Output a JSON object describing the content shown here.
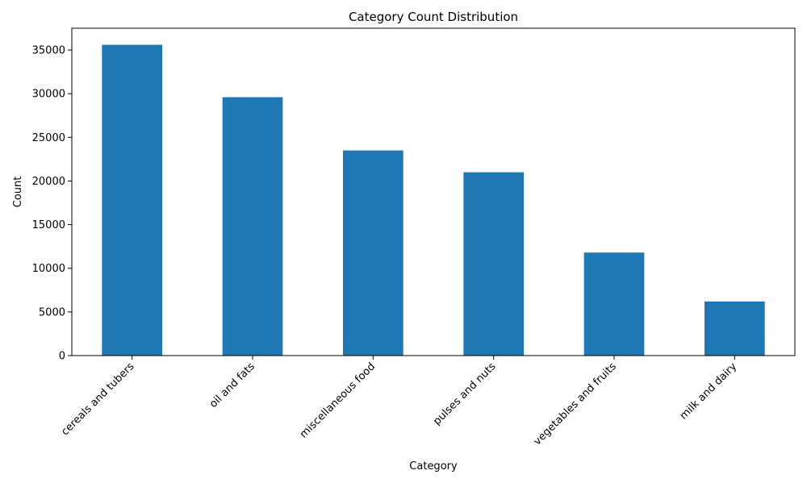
{
  "chart_data": {
    "type": "bar",
    "title": "Category Count Distribution",
    "xlabel": "Category",
    "ylabel": "Count",
    "categories": [
      "cereals and tubers",
      "oil and fats",
      "miscellaneous food",
      "pulses and nuts",
      "vegetables and fruits",
      "milk and dairy"
    ],
    "values": [
      35600,
      29600,
      23500,
      21000,
      11800,
      6200
    ],
    "ylim": [
      0,
      37500
    ],
    "yticks": [
      0,
      5000,
      10000,
      15000,
      20000,
      25000,
      30000,
      35000
    ],
    "bar_color": "#1f77b4",
    "grid": false,
    "legend": "none"
  }
}
